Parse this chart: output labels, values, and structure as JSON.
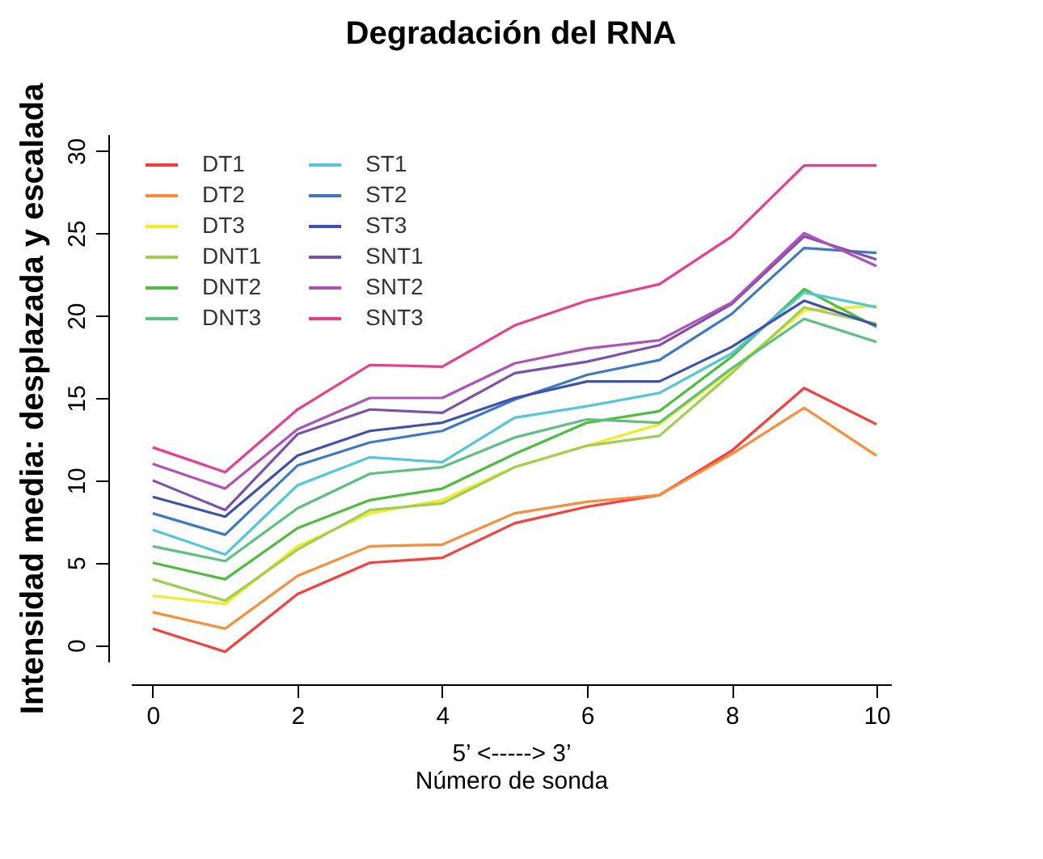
{
  "chart_data": {
    "type": "line",
    "title": "Degradación del RNA",
    "xlabel": "5’ <-----> 3’\nNúmero de sonda",
    "ylabel": "Intensidad media: desplazada y escalada",
    "x": [
      0,
      1,
      2,
      3,
      4,
      5,
      6,
      7,
      8,
      9,
      10
    ],
    "xlim": [
      -0.3,
      10.2
    ],
    "xticks": [
      0,
      2,
      4,
      6,
      8,
      10
    ],
    "ylim": [
      -1,
      31
    ],
    "yticks": [
      0,
      5,
      10,
      15,
      20,
      25,
      30
    ],
    "grid": false,
    "legend": "top left",
    "marker": "none",
    "line_style": "solid",
    "series": [
      {
        "name": "DT1",
        "color": "#ff3a3a",
        "values": [
          1,
          -0.4,
          3.1,
          5.0,
          5.3,
          7.4,
          8.4,
          9.1,
          11.8,
          15.6,
          13.4
        ]
      },
      {
        "name": "DT2",
        "color": "#ff8c35",
        "values": [
          2,
          1.0,
          4.2,
          6.0,
          6.1,
          8.0,
          8.7,
          9.1,
          11.6,
          14.4,
          11.5
        ]
      },
      {
        "name": "DT3",
        "color": "#f0ec1f",
        "values": [
          3,
          2.5,
          6.0,
          8.0,
          8.8,
          10.8,
          12.1,
          13.4,
          16.7,
          20.3,
          20.6
        ]
      },
      {
        "name": "DNT1",
        "color": "#9ed04e",
        "values": [
          4,
          2.7,
          5.8,
          8.2,
          8.6,
          10.8,
          12.1,
          12.7,
          16.5,
          20.5,
          19.5
        ]
      },
      {
        "name": "DNT2",
        "color": "#4cbe3d",
        "values": [
          5,
          4.0,
          7.1,
          8.8,
          9.5,
          11.6,
          13.5,
          14.2,
          17.5,
          21.6,
          19.3
        ]
      },
      {
        "name": "DNT3",
        "color": "#5cc17e",
        "values": [
          6,
          5.1,
          8.3,
          10.4,
          10.8,
          12.6,
          13.7,
          13.5,
          16.8,
          19.8,
          18.4
        ]
      },
      {
        "name": "ST1",
        "color": "#4fc8dc",
        "values": [
          7,
          5.5,
          9.7,
          11.4,
          11.1,
          13.8,
          14.5,
          15.3,
          17.7,
          21.4,
          20.5
        ]
      },
      {
        "name": "ST2",
        "color": "#3a7ac8",
        "values": [
          8,
          6.7,
          10.9,
          12.3,
          13.0,
          14.9,
          16.4,
          17.3,
          20.1,
          24.1,
          23.8
        ]
      },
      {
        "name": "ST3",
        "color": "#3f50b5",
        "values": [
          9,
          7.8,
          11.5,
          13.0,
          13.5,
          15.0,
          16.0,
          16.0,
          18.1,
          20.9,
          19.4
        ]
      },
      {
        "name": "SNT1",
        "color": "#7a50b0",
        "values": [
          10,
          8.2,
          12.8,
          14.3,
          14.1,
          16.5,
          17.2,
          18.2,
          20.7,
          24.8,
          23.4
        ]
      },
      {
        "name": "SNT2",
        "color": "#b150b8",
        "values": [
          11,
          9.5,
          13.1,
          15.0,
          15.0,
          17.1,
          18.0,
          18.5,
          20.8,
          25.0,
          23.0
        ]
      },
      {
        "name": "SNT3",
        "color": "#f03b8a",
        "values": [
          12,
          10.5,
          14.3,
          17.0,
          16.9,
          19.4,
          20.9,
          21.9,
          24.8,
          29.1,
          29.1
        ]
      }
    ]
  }
}
